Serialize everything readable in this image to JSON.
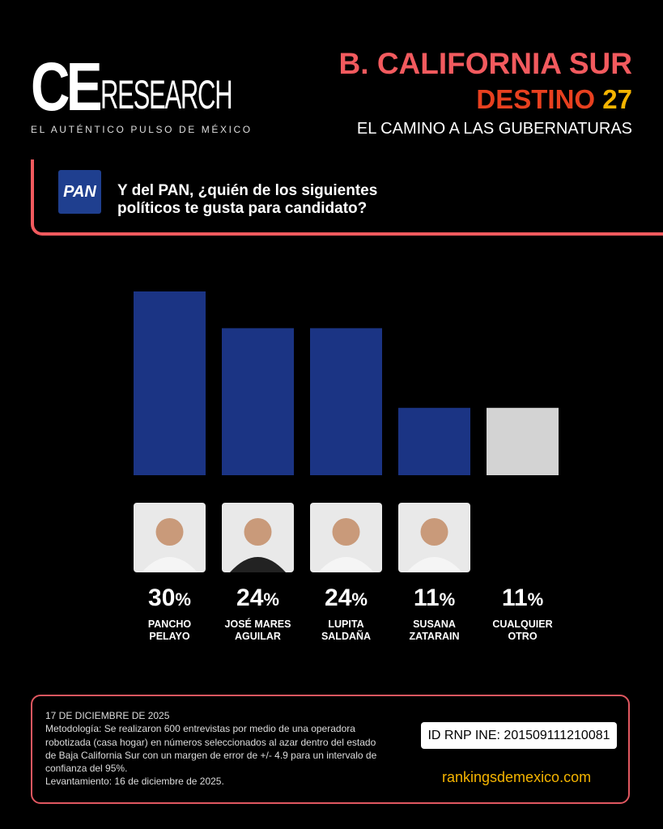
{
  "header": {
    "logo_ce": "CE",
    "logo_research": "RESEARCH",
    "tagline": "EL AUTÉNTICO PULSO DE MÉXICO",
    "state": "B. CALIFORNIA SUR",
    "destino": "DESTINO",
    "destino_num": "27",
    "subtitle": "EL CAMINO A LAS GUBERNATURAS"
  },
  "question": {
    "party_logo": "PAN",
    "text": "Y del PAN, ¿quién de los siguientes políticos te gusta para candidato?"
  },
  "chart_data": {
    "type": "bar",
    "title": "Y del PAN, ¿quién de los siguientes políticos te gusta para candidato?",
    "categories": [
      "PANCHO PELAYO",
      "JOSÉ MARES AGUILAR",
      "LUPITA SALDAÑA",
      "SUSANA ZATARAIN",
      "CUALQUIER OTRO"
    ],
    "values": [
      30,
      24,
      24,
      11,
      11
    ],
    "labels": [
      "30",
      "24",
      "24",
      "11",
      "11"
    ],
    "unit": "%",
    "colors": [
      "#1b3484",
      "#1b3484",
      "#1b3484",
      "#1b3484",
      "#d3d3d3"
    ],
    "ylim": [
      0,
      30
    ],
    "grid": false
  },
  "candidates": [
    {
      "name1": "PANCHO",
      "name2": "PELAYO",
      "photo": true
    },
    {
      "name1": "JOSÉ MARES",
      "name2": "AGUILAR",
      "photo": true
    },
    {
      "name1": "LUPITA",
      "name2": "SALDAÑA",
      "photo": true
    },
    {
      "name1": "SUSANA",
      "name2": "ZATARAIN",
      "photo": true
    },
    {
      "name1": "CUALQUIER",
      "name2": "OTRO",
      "photo": false
    }
  ],
  "footer": {
    "date": "17 DE DICIEMBRE DE 2025",
    "methodology": "Metodología: Se realizaron 600 entrevistas por medio de una operadora robotizada (casa hogar) en números seleccionados al azar dentro del estado de Baja California Sur con un margen de error de +/- 4.9 para un intervalo de confianza del 95%.",
    "fieldwork": "Levantamiento: 16 de diciembre de 2025.",
    "rnp": "ID RNP INE: 201509111210081",
    "url": "rankingsdemexico.com"
  }
}
